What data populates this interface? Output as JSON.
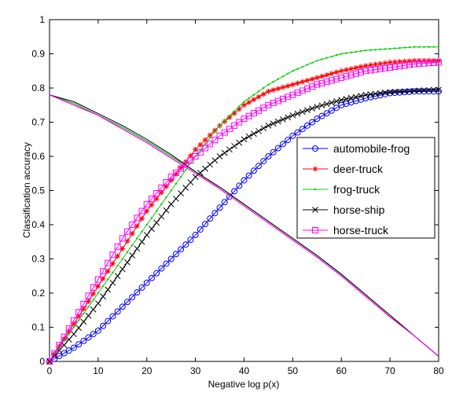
{
  "chart_data": {
    "type": "line",
    "title": "",
    "xlabel": "Negative log p(x)",
    "ylabel": "Classification accuracy",
    "xlim": [
      0,
      80
    ],
    "ylim": [
      0,
      1
    ],
    "xticks": [
      0,
      10,
      20,
      30,
      40,
      50,
      60,
      70,
      80
    ],
    "yticks": [
      0,
      0.1,
      0.2,
      0.3,
      0.4,
      0.5,
      0.6,
      0.7,
      0.8,
      0.9,
      1
    ],
    "grid": false,
    "legend_position": "center-right",
    "x": [
      0,
      5,
      10,
      15,
      20,
      25,
      30,
      35,
      40,
      45,
      50,
      55,
      60,
      65,
      70,
      75,
      80
    ],
    "series": [
      {
        "name": "automobile-frog",
        "color": "#0000ff",
        "marker": "circle",
        "values": [
          0,
          0.04,
          0.09,
          0.16,
          0.23,
          0.3,
          0.37,
          0.45,
          0.53,
          0.6,
          0.66,
          0.71,
          0.75,
          0.77,
          0.785,
          0.79,
          0.79
        ],
        "descending_values": [
          0.78,
          0.755,
          0.72,
          0.685,
          0.645,
          0.6,
          0.555,
          0.51,
          0.46,
          0.41,
          0.36,
          0.31,
          0.255,
          0.195,
          0.135,
          0.075,
          0.015
        ]
      },
      {
        "name": "deer-truck",
        "color": "#ff0000",
        "marker": "star",
        "values": [
          0,
          0.11,
          0.22,
          0.33,
          0.44,
          0.53,
          0.62,
          0.69,
          0.75,
          0.79,
          0.81,
          0.83,
          0.85,
          0.865,
          0.875,
          0.88,
          0.88
        ],
        "descending_values": [
          0.78,
          0.75,
          0.72,
          0.68,
          0.64,
          0.595,
          0.55,
          0.505,
          0.455,
          0.405,
          0.355,
          0.305,
          0.25,
          0.19,
          0.13,
          0.075,
          0.015
        ]
      },
      {
        "name": "frog-truck",
        "color": "#00cc00",
        "marker": "dot",
        "values": [
          0,
          0.1,
          0.2,
          0.3,
          0.4,
          0.5,
          0.6,
          0.69,
          0.76,
          0.81,
          0.85,
          0.88,
          0.9,
          0.91,
          0.915,
          0.92,
          0.92
        ],
        "descending_values": [
          0.78,
          0.755,
          0.72,
          0.685,
          0.645,
          0.6,
          0.555,
          0.51,
          0.46,
          0.41,
          0.36,
          0.31,
          0.255,
          0.195,
          0.135,
          0.075,
          0.015
        ]
      },
      {
        "name": "horse-ship",
        "color": "#000000",
        "marker": "x",
        "values": [
          0,
          0.08,
          0.17,
          0.27,
          0.37,
          0.46,
          0.54,
          0.6,
          0.65,
          0.69,
          0.72,
          0.745,
          0.765,
          0.78,
          0.788,
          0.792,
          0.795
        ],
        "descending_values": [
          0.78,
          0.76,
          0.725,
          0.69,
          0.65,
          0.605,
          0.555,
          0.51,
          0.46,
          0.41,
          0.36,
          0.31,
          0.255,
          0.195,
          0.135,
          0.075,
          0.015
        ]
      },
      {
        "name": "horse-truck",
        "color": "#ff00ff",
        "marker": "square",
        "values": [
          0,
          0.12,
          0.24,
          0.36,
          0.46,
          0.54,
          0.6,
          0.66,
          0.71,
          0.75,
          0.78,
          0.81,
          0.83,
          0.85,
          0.86,
          0.87,
          0.875
        ],
        "descending_values": [
          0.78,
          0.75,
          0.72,
          0.68,
          0.64,
          0.595,
          0.55,
          0.505,
          0.455,
          0.405,
          0.355,
          0.305,
          0.25,
          0.19,
          0.13,
          0.075,
          0.015
        ]
      }
    ]
  }
}
